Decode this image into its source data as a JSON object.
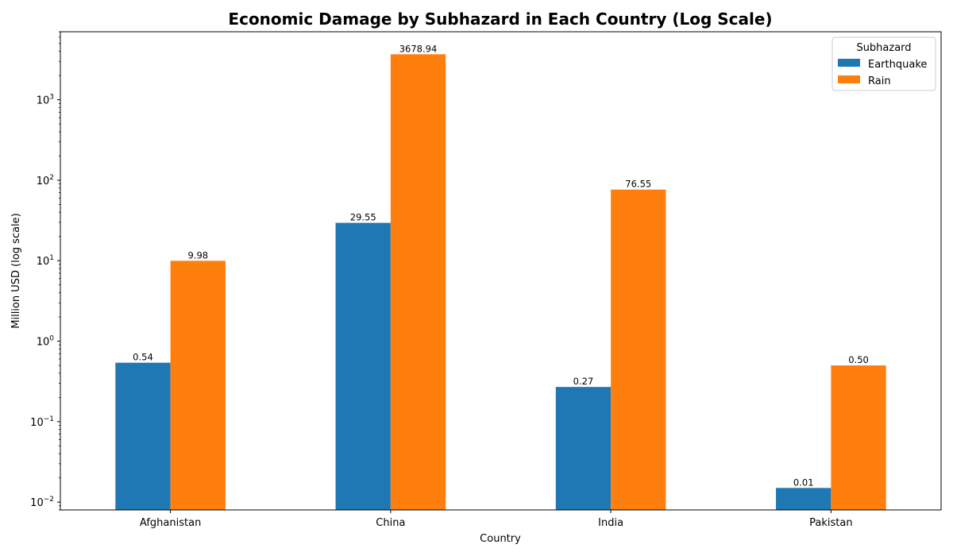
{
  "chart_data": {
    "type": "bar",
    "title": "Economic Damage by Subhazard in Each Country (Log Scale)",
    "xlabel": "Country",
    "ylabel": "Million USD (log scale)",
    "yscale": "log",
    "ylim": [
      0.008,
      7000
    ],
    "y_ticks": [
      0.01,
      0.1,
      1,
      10,
      100,
      1000
    ],
    "y_tick_labels": [
      {
        "base": "10",
        "exp": "−2"
      },
      {
        "base": "10",
        "exp": "−1"
      },
      {
        "base": "10",
        "exp": "0"
      },
      {
        "base": "10",
        "exp": "1"
      },
      {
        "base": "10",
        "exp": "2"
      },
      {
        "base": "10",
        "exp": "3"
      }
    ],
    "categories": [
      "Afghanistan",
      "China",
      "India",
      "Pakistan"
    ],
    "series": [
      {
        "name": "Earthquake",
        "color": "#1f77b4",
        "values": [
          0.54,
          29.55,
          0.27,
          0.015
        ],
        "labels": [
          "0.54",
          "29.55",
          "0.27",
          "0.01"
        ]
      },
      {
        "name": "Rain",
        "color": "#ff7f0e",
        "values": [
          9.98,
          3678.94,
          76.55,
          0.5
        ],
        "labels": [
          "9.98",
          "3678.94",
          "76.55",
          "0.50"
        ]
      }
    ],
    "legend": {
      "title": "Subhazard",
      "placement": "top-right"
    }
  }
}
